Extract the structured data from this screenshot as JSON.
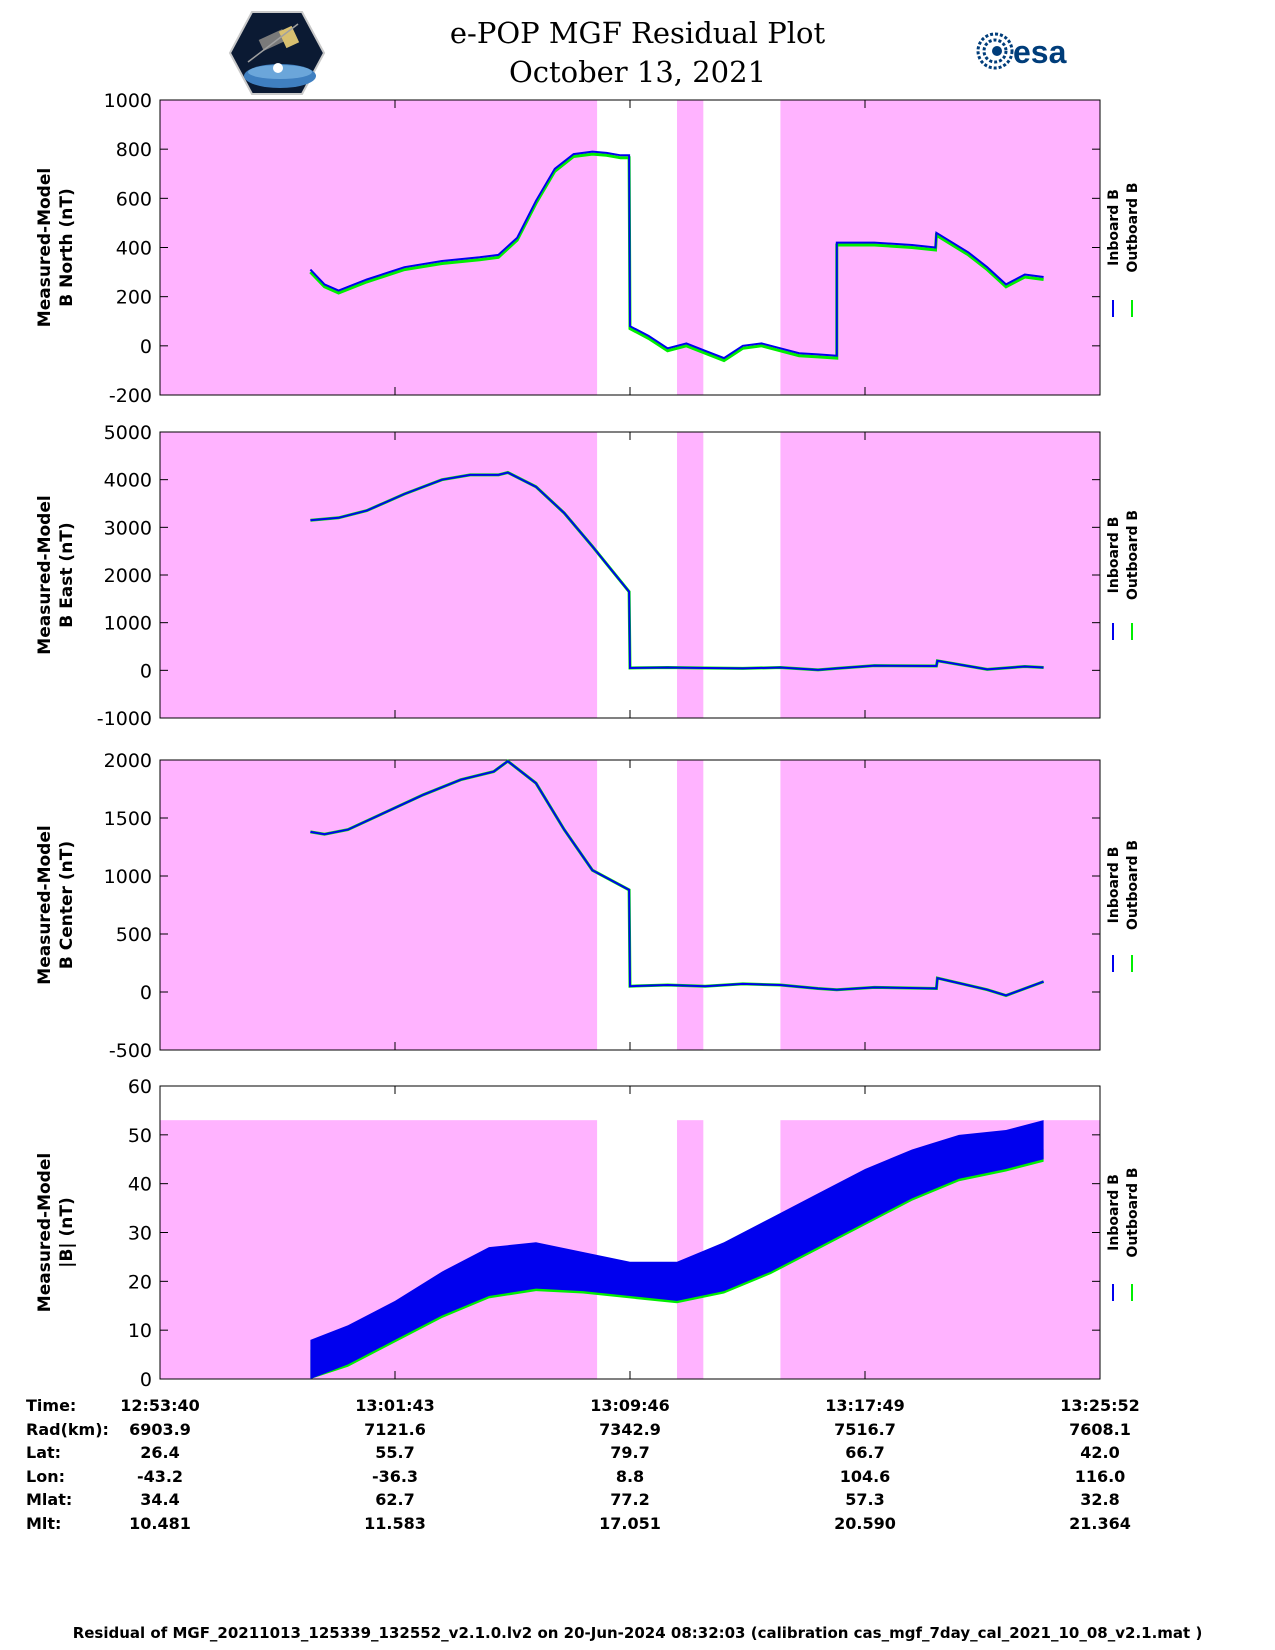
{
  "header": {
    "title": "e-POP MGF Residual Plot",
    "date": "October 13, 2021",
    "left_logo": "cassiope-satellite-logo",
    "right_logo_text": "esa",
    "right_logo": "esa-logo"
  },
  "colors": {
    "inboard": "#0000ee",
    "outboard": "#00ee00",
    "shade": "#ffb3ff"
  },
  "legend": [
    "Inboard B",
    "Outboard B"
  ],
  "chart_data": [
    {
      "type": "line",
      "ylabel": [
        "Measured-Model",
        "B North (nT)"
      ],
      "ylim": [
        -200,
        1000
      ],
      "yticks": [
        -200,
        0,
        200,
        400,
        600,
        800,
        1000
      ],
      "series": [
        {
          "name": "Inboard B",
          "x": [
            0.16,
            0.175,
            0.19,
            0.22,
            0.26,
            0.3,
            0.34,
            0.36,
            0.38,
            0.4,
            0.42,
            0.44,
            0.46,
            0.475,
            0.49,
            0.499,
            0.5,
            0.52,
            0.54,
            0.56,
            0.58,
            0.6,
            0.62,
            0.64,
            0.66,
            0.68,
            0.7,
            0.72,
            0.72,
            0.76,
            0.8,
            0.825,
            0.826,
            0.86,
            0.88,
            0.9,
            0.92,
            0.94
          ],
          "y": [
            310,
            250,
            225,
            270,
            320,
            345,
            360,
            370,
            440,
            590,
            720,
            780,
            790,
            785,
            775,
            775,
            80,
            40,
            -10,
            10,
            -20,
            -50,
            0,
            10,
            -10,
            -30,
            -35,
            -40,
            420,
            420,
            410,
            400,
            460,
            380,
            320,
            250,
            290,
            280
          ]
        },
        {
          "name": "Outboard B",
          "x": [
            0.16,
            0.175,
            0.19,
            0.22,
            0.26,
            0.3,
            0.34,
            0.36,
            0.38,
            0.4,
            0.42,
            0.44,
            0.46,
            0.475,
            0.49,
            0.499,
            0.5,
            0.52,
            0.54,
            0.56,
            0.58,
            0.6,
            0.62,
            0.64,
            0.66,
            0.68,
            0.7,
            0.72,
            0.72,
            0.76,
            0.8,
            0.825,
            0.826,
            0.86,
            0.88,
            0.9,
            0.92,
            0.94
          ],
          "y": [
            300,
            240,
            215,
            260,
            310,
            335,
            350,
            360,
            430,
            580,
            710,
            770,
            780,
            775,
            765,
            765,
            70,
            30,
            -20,
            0,
            -30,
            -60,
            -10,
            0,
            -20,
            -40,
            -45,
            -50,
            410,
            410,
            400,
            390,
            450,
            370,
            310,
            240,
            280,
            270
          ]
        }
      ]
    },
    {
      "type": "line",
      "ylabel": [
        "Measured-Model",
        "B East (nT)"
      ],
      "ylim": [
        -1000,
        5000
      ],
      "yticks": [
        -1000,
        0,
        1000,
        2000,
        3000,
        4000,
        5000
      ],
      "series": [
        {
          "name": "Inboard B",
          "x": [
            0.16,
            0.19,
            0.22,
            0.26,
            0.3,
            0.33,
            0.36,
            0.37,
            0.4,
            0.43,
            0.46,
            0.499,
            0.5,
            0.54,
            0.58,
            0.62,
            0.66,
            0.7,
            0.72,
            0.76,
            0.826,
            0.827,
            0.88,
            0.92,
            0.94
          ],
          "y": [
            3150,
            3200,
            3350,
            3700,
            4000,
            4100,
            4100,
            4150,
            3850,
            3300,
            2600,
            1650,
            50,
            60,
            50,
            40,
            60,
            10,
            40,
            100,
            90,
            200,
            20,
            80,
            60
          ]
        },
        {
          "name": "Outboard B",
          "x": [
            0.16,
            0.19,
            0.22,
            0.26,
            0.3,
            0.33,
            0.36,
            0.37,
            0.4,
            0.43,
            0.46,
            0.499,
            0.5,
            0.54,
            0.58,
            0.62,
            0.66,
            0.7,
            0.72,
            0.76,
            0.826,
            0.827,
            0.88,
            0.92,
            0.94
          ],
          "y": [
            3150,
            3200,
            3350,
            3700,
            4000,
            4100,
            4100,
            4150,
            3850,
            3300,
            2600,
            1650,
            50,
            60,
            50,
            40,
            60,
            10,
            40,
            100,
            90,
            200,
            20,
            80,
            60
          ]
        }
      ]
    },
    {
      "type": "line",
      "ylabel": [
        "Measured-Model",
        "B Center (nT)"
      ],
      "ylim": [
        -500,
        2000
      ],
      "yticks": [
        -500,
        0,
        500,
        1000,
        1500,
        2000
      ],
      "series": [
        {
          "name": "Inboard B",
          "x": [
            0.16,
            0.175,
            0.2,
            0.24,
            0.28,
            0.32,
            0.355,
            0.37,
            0.4,
            0.43,
            0.46,
            0.499,
            0.5,
            0.54,
            0.58,
            0.62,
            0.66,
            0.7,
            0.72,
            0.76,
            0.826,
            0.827,
            0.88,
            0.9,
            0.94
          ],
          "y": [
            1380,
            1360,
            1400,
            1550,
            1700,
            1830,
            1900,
            1990,
            1800,
            1400,
            1050,
            880,
            50,
            60,
            50,
            70,
            60,
            30,
            20,
            40,
            30,
            120,
            20,
            -30,
            90
          ]
        },
        {
          "name": "Outboard B",
          "x": [
            0.16,
            0.175,
            0.2,
            0.24,
            0.28,
            0.32,
            0.355,
            0.37,
            0.4,
            0.43,
            0.46,
            0.499,
            0.5,
            0.54,
            0.58,
            0.62,
            0.66,
            0.7,
            0.72,
            0.76,
            0.826,
            0.827,
            0.88,
            0.9,
            0.94
          ],
          "y": [
            1380,
            1360,
            1400,
            1550,
            1700,
            1830,
            1900,
            1990,
            1800,
            1400,
            1050,
            880,
            50,
            60,
            50,
            70,
            60,
            30,
            20,
            40,
            30,
            120,
            20,
            -30,
            90
          ]
        }
      ]
    },
    {
      "type": "area",
      "ylabel": [
        "Measured-Model",
        "|B| (nT)"
      ],
      "ylim": [
        0,
        60
      ],
      "yticks": [
        0,
        10,
        20,
        30,
        40,
        50,
        60
      ],
      "series": [
        {
          "name": "Inboard B",
          "x": [
            0.16,
            0.2,
            0.25,
            0.3,
            0.35,
            0.4,
            0.45,
            0.5,
            0.55,
            0.6,
            0.65,
            0.7,
            0.75,
            0.8,
            0.85,
            0.9,
            0.94
          ],
          "high": [
            8,
            11,
            16,
            22,
            27,
            28,
            26,
            24,
            24,
            28,
            33,
            38,
            43,
            47,
            50,
            51,
            53
          ],
          "low": [
            0,
            3,
            8,
            13,
            17,
            18.5,
            18,
            17,
            16,
            18,
            22,
            27,
            32,
            37,
            41,
            43,
            45
          ]
        },
        {
          "name": "Outboard B",
          "x": [
            0.16,
            0.2,
            0.25,
            0.3,
            0.35,
            0.4,
            0.45,
            0.5,
            0.55,
            0.6,
            0.65,
            0.7,
            0.75,
            0.8,
            0.85,
            0.9,
            0.94
          ],
          "high": [
            6,
            9,
            14,
            19,
            23,
            23.5,
            22,
            21,
            21,
            24,
            28,
            32,
            36,
            40,
            43,
            45,
            47
          ],
          "low": [
            0,
            2.5,
            7.5,
            12.5,
            16.5,
            18,
            17.5,
            16.5,
            15.5,
            17.5,
            21.5,
            26.5,
            31.5,
            36.5,
            40.5,
            42.5,
            44.5
          ]
        }
      ]
    }
  ],
  "shaded_regions": [
    [
      0,
      0.465
    ],
    [
      0.55,
      0.578
    ],
    [
      0.66,
      1.0
    ]
  ],
  "abs_b_shade_top": 53,
  "time_axis": {
    "labels": [
      "Time:",
      "Rad(km):",
      "Lat:",
      "Lon:",
      "Mlat:",
      "Mlt:"
    ],
    "columns": [
      {
        "time": "12:53:40",
        "rad": "6903.9",
        "lat": "26.4",
        "lon": "-43.2",
        "mlat": "34.4",
        "mlt": "10.481"
      },
      {
        "time": "13:01:43",
        "rad": "7121.6",
        "lat": "55.7",
        "lon": "-36.3",
        "mlat": "62.7",
        "mlt": "11.583"
      },
      {
        "time": "13:09:46",
        "rad": "7342.9",
        "lat": "79.7",
        "lon": "8.8",
        "mlat": "77.2",
        "mlt": "17.051"
      },
      {
        "time": "13:17:49",
        "rad": "7516.7",
        "lat": "66.7",
        "lon": "104.6",
        "mlat": "57.3",
        "mlt": "20.590"
      },
      {
        "time": "13:25:52",
        "rad": "7608.1",
        "lat": "42.0",
        "lon": "116.0",
        "mlat": "32.8",
        "mlt": "21.364"
      }
    ]
  },
  "footer": "Residual of MGF_20211013_125339_132552_v2.1.0.lv2 on 20-Jun-2024 08:32:03 (calibration cas_mgf_7day_cal_2021_10_08_v2.1.mat )"
}
